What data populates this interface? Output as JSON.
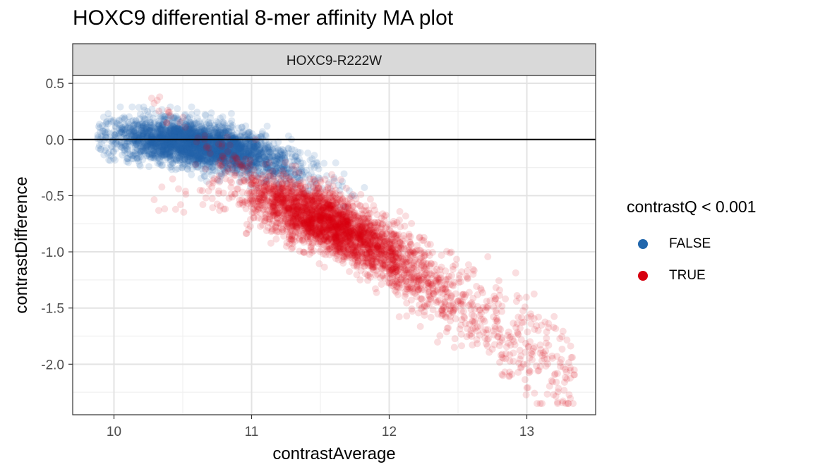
{
  "chart_data": {
    "type": "scatter",
    "title": "HOXC9 differential 8-mer affinity MA plot",
    "facet_label": "HOXC9-R222W",
    "xlabel": "contrastAverage",
    "ylabel": "contrastDifference",
    "xlim": [
      9.7,
      13.5
    ],
    "ylim": [
      -2.45,
      0.57
    ],
    "x_ticks": [
      10,
      11,
      12,
      13
    ],
    "x_tick_labels": [
      "10",
      "11",
      "12",
      "13"
    ],
    "y_ticks": [
      0.5,
      0.0,
      -0.5,
      -1.0,
      -1.5,
      -2.0
    ],
    "y_tick_labels": [
      "0.5",
      "0.0",
      "-0.5",
      "-1.0",
      "-1.5",
      "-2.0"
    ],
    "hline": 0,
    "grid": true,
    "legend": {
      "title": "contrastQ < 0.001",
      "placement": "right",
      "entries": [
        {
          "label": "FALSE",
          "color": "#2166ac"
        },
        {
          "label": "TRUE",
          "color": "#d7000f"
        }
      ]
    },
    "series": [
      {
        "name": "FALSE",
        "color": "#2166ac",
        "n_points_approx": 20000,
        "trend": {
          "x": [
            10.0,
            10.5,
            11.0,
            11.5
          ],
          "y": [
            0.02,
            -0.02,
            -0.12,
            -0.35
          ]
        },
        "x_range": [
          9.88,
          11.85
        ],
        "y_range": [
          -0.6,
          0.29
        ]
      },
      {
        "name": "TRUE",
        "color": "#d7000f",
        "n_points_approx": 12000,
        "trend": {
          "x": [
            10.3,
            11.0,
            11.5,
            12.0,
            12.5,
            13.0
          ],
          "y": [
            0.2,
            -0.5,
            -0.7,
            -1.02,
            -1.45,
            -1.85
          ]
        },
        "x_range": [
          10.2,
          13.35
        ],
        "y_range": [
          -2.35,
          0.43
        ]
      }
    ]
  }
}
